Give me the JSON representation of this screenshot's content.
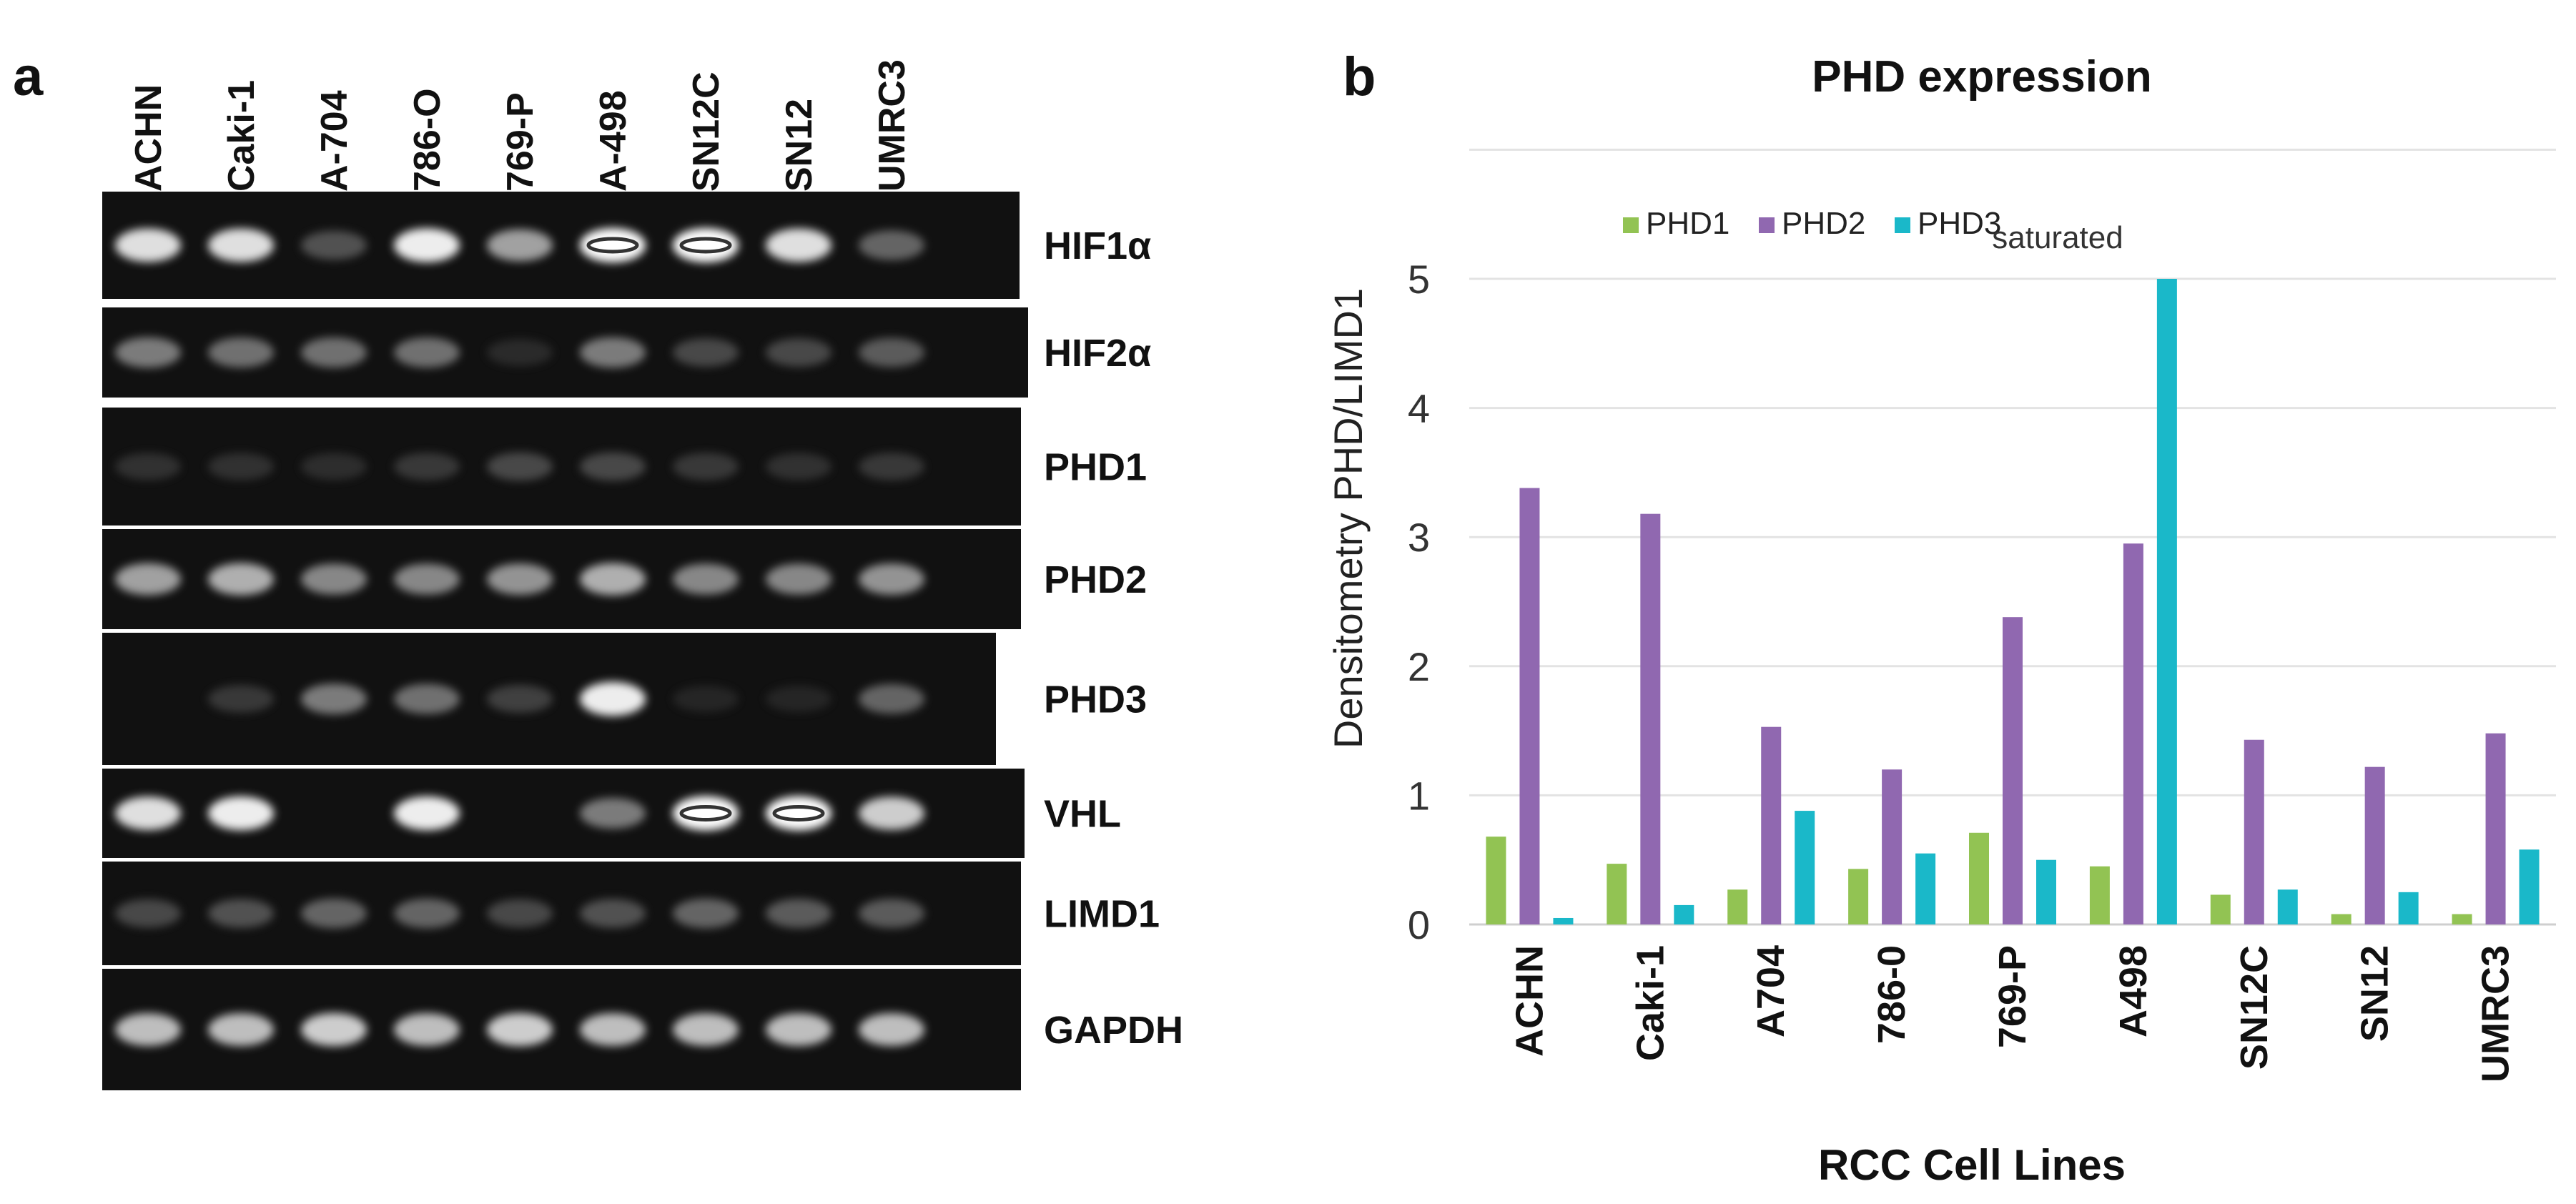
{
  "panel_a": {
    "letter": "a",
    "lanes": [
      "ACHN",
      "Caki-1",
      "A-704",
      "786-O",
      "769-P",
      "A-498",
      "SN12C",
      "SN12",
      "UMRC3"
    ],
    "genes": [
      "HIF1α",
      "HIF2α",
      "PHD1",
      "PHD2",
      "PHD3",
      "VHL",
      "LIMD1",
      "GAPDH"
    ],
    "band_intensity": {
      "HIF1α": [
        0.9,
        0.9,
        0.35,
        0.95,
        0.7,
        1.0,
        1.0,
        0.9,
        0.45
      ],
      "HIF2α": [
        0.55,
        0.5,
        0.5,
        0.5,
        0.1,
        0.55,
        0.3,
        0.3,
        0.4
      ],
      "PHD1": [
        0.15,
        0.15,
        0.12,
        0.2,
        0.3,
        0.3,
        0.2,
        0.15,
        0.2
      ],
      "PHD2": [
        0.7,
        0.75,
        0.6,
        0.6,
        0.65,
        0.75,
        0.6,
        0.6,
        0.65
      ],
      "PHD3": [
        0.0,
        0.2,
        0.55,
        0.5,
        0.25,
        0.95,
        0.05,
        0.05,
        0.45
      ],
      "VHL": [
        0.9,
        0.95,
        0.0,
        0.95,
        0.0,
        0.55,
        1.0,
        1.0,
        0.85
      ],
      "LIMD1": [
        0.3,
        0.35,
        0.45,
        0.45,
        0.3,
        0.35,
        0.45,
        0.4,
        0.4
      ],
      "GAPDH": [
        0.8,
        0.8,
        0.85,
        0.8,
        0.85,
        0.8,
        0.8,
        0.8,
        0.8
      ]
    }
  },
  "panel_b": {
    "letter": "b",
    "saturated_note": "saturated"
  },
  "chart_data": {
    "type": "bar",
    "title": "PHD expression",
    "xlabel": "RCC  Cell Lines",
    "ylabel": "Densitometry PHD/LIMD1",
    "categories": [
      "ACHN",
      "Caki-1",
      "A704",
      "786-0",
      "769-P",
      "A498",
      "SN12C",
      "SN12",
      "UMRC3"
    ],
    "series": [
      {
        "name": "PHD1",
        "color": "#92c353",
        "values": [
          0.68,
          0.47,
          0.27,
          0.43,
          0.71,
          0.45,
          0.23,
          0.08,
          0.08
        ]
      },
      {
        "name": "PHD2",
        "color": "#9068b0",
        "values": [
          3.38,
          3.18,
          1.53,
          1.2,
          2.38,
          2.95,
          1.43,
          1.22,
          1.48
        ]
      },
      {
        "name": "PHD3",
        "color": "#1ab8c9",
        "values": [
          0.05,
          0.15,
          0.88,
          0.55,
          0.5,
          5.0,
          0.27,
          0.25,
          0.58
        ]
      }
    ],
    "ylim": [
      0,
      5
    ],
    "yticks": [
      0,
      1,
      2,
      3,
      4,
      5
    ],
    "grid": true,
    "legend": "top"
  }
}
